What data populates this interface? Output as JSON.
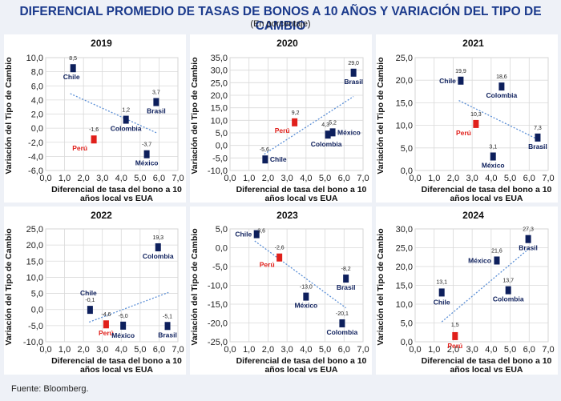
{
  "title": "DIFERENCIAL PROMEDIO DE TASAS DE BONOS A 10 AÑOS Y VARIACIÓN DEL TIPO DE CAMBIO",
  "subtitle": "(En porcentaje)",
  "source": "Fuente: Bloomberg.",
  "colors": {
    "country": "#0d1f5c",
    "peru": "#e0201b",
    "trend": "#5b8fd6",
    "grid": "#d9d9d9"
  },
  "chart_data": [
    {
      "type": "scatter",
      "title": "2019",
      "xlabel": "Diferencial de tasa del bono a 10 años local vs EUA",
      "ylabel": "Variación del Tipo de Cambio",
      "xlim": [
        0,
        7
      ],
      "ylim": [
        -6,
        10
      ],
      "xticks": [
        "0,0",
        "1,0",
        "2,0",
        "3,0",
        "4,0",
        "5,0",
        "6,0",
        "7,0"
      ],
      "yticks": [
        "-6,0",
        "-4,0",
        "-2,0",
        "0,0",
        "2,0",
        "4,0",
        "6,0",
        "8,0",
        "10,0"
      ],
      "points": [
        {
          "name": "Chile",
          "x": 1.45,
          "y": 8.5,
          "label": "8,5"
        },
        {
          "name": "Perú",
          "x": 2.55,
          "y": -1.6,
          "label": "-1,6"
        },
        {
          "name": "Colombia",
          "x": 4.25,
          "y": 1.2,
          "label": "1,2"
        },
        {
          "name": "México",
          "x": 5.35,
          "y": -3.7,
          "label": "-3,7"
        },
        {
          "name": "Brasil",
          "x": 5.85,
          "y": 3.7,
          "label": "3,7"
        }
      ],
      "trend": [
        [
          1.3,
          4.9
        ],
        [
          5.9,
          -0.7
        ]
      ]
    },
    {
      "type": "scatter",
      "title": "2020",
      "xlabel": "Diferencial de tasa del bono a 10 años local vs EUA",
      "ylabel": "Variación del Tipo de Cambio",
      "xlim": [
        0,
        7
      ],
      "ylim": [
        -10,
        35
      ],
      "xticks": [
        "0,0",
        "1,0",
        "2,0",
        "3,0",
        "4,0",
        "5,0",
        "6,0",
        "7,0"
      ],
      "yticks": [
        "-10,0",
        "-5,0",
        "0,0",
        "5,0",
        "10,0",
        "15,0",
        "20,0",
        "25,0",
        "30,0",
        "35,0"
      ],
      "points": [
        {
          "name": "Chile",
          "x": 1.85,
          "y": -5.6,
          "label": "-5,6"
        },
        {
          "name": "Perú",
          "x": 3.4,
          "y": 9.2,
          "label": "9,2"
        },
        {
          "name": "Colombia",
          "x": 5.15,
          "y": 4.3,
          "label": "4,3"
        },
        {
          "name": "México",
          "x": 5.4,
          "y": 5.2,
          "label": "5,2"
        },
        {
          "name": "Brasil",
          "x": 6.5,
          "y": 29.0,
          "label": "29,0"
        }
      ],
      "trend": [
        [
          1.8,
          -3.5
        ],
        [
          6.5,
          19.5
        ]
      ]
    },
    {
      "type": "scatter",
      "title": "2021",
      "xlabel": "Diferencial de tasa del bono a 10 años local vs EUA",
      "ylabel": "Variación del Tipo de Cambio",
      "xlim": [
        0,
        7
      ],
      "ylim": [
        0,
        25
      ],
      "xticks": [
        "0,0",
        "1,0",
        "2,0",
        "3,0",
        "4,0",
        "5,0",
        "6,0",
        "7,0"
      ],
      "yticks": [
        "0,0",
        "5,0",
        "10,0",
        "15,0",
        "20,0",
        "25,0"
      ],
      "points": [
        {
          "name": "Chile",
          "x": 2.4,
          "y": 19.9,
          "label": "19,9"
        },
        {
          "name": "Perú",
          "x": 3.2,
          "y": 10.3,
          "label": "10,3"
        },
        {
          "name": "México",
          "x": 4.1,
          "y": 3.1,
          "label": "3,1"
        },
        {
          "name": "Colombia",
          "x": 4.55,
          "y": 18.6,
          "label": "18,6"
        },
        {
          "name": "Brasil",
          "x": 6.45,
          "y": 7.3,
          "label": "7,3"
        }
      ],
      "trend": [
        [
          2.3,
          15.5
        ],
        [
          6.5,
          6.8
        ]
      ]
    },
    {
      "type": "scatter",
      "title": "2022",
      "xlabel": "Diferencial de tasa del bono a 10 años local vs EUA",
      "ylabel": "Variación del Tipo de Cambio",
      "xlim": [
        0,
        7
      ],
      "ylim": [
        -10,
        25
      ],
      "xticks": [
        "0,0",
        "1,0",
        "2,0",
        "3,0",
        "4,0",
        "5,0",
        "6,0",
        "7,0"
      ],
      "yticks": [
        "-10,0",
        "-5,0",
        "0,0",
        "5,0",
        "10,0",
        "15,0",
        "20,0",
        "25,0"
      ],
      "points": [
        {
          "name": "Chile",
          "x": 2.35,
          "y": -0.1,
          "label": "-0,1"
        },
        {
          "name": "Perú",
          "x": 3.2,
          "y": -4.6,
          "label": "-4,6"
        },
        {
          "name": "México",
          "x": 4.1,
          "y": -5.0,
          "label": "-5,0"
        },
        {
          "name": "Colombia",
          "x": 5.95,
          "y": 19.3,
          "label": "19,3"
        },
        {
          "name": "Brasil",
          "x": 6.45,
          "y": -5.1,
          "label": "-5,1"
        }
      ],
      "trend": [
        [
          2.3,
          -3.9
        ],
        [
          6.5,
          5.3
        ]
      ]
    },
    {
      "type": "scatter",
      "title": "2023",
      "xlabel": "Diferencial de tasa del bono a 10 años local vs EUA",
      "ylabel": "Variación del Tipo de Cambio",
      "xlim": [
        0,
        7
      ],
      "ylim": [
        -25,
        5
      ],
      "xticks": [
        "0,0",
        "1,0",
        "2,0",
        "3,0",
        "4,0",
        "5,0",
        "6,0",
        "7,0"
      ],
      "yticks": [
        "-25,0",
        "-20,0",
        "-15,0",
        "-10,0",
        "-5,0",
        "0,0",
        "5,0"
      ],
      "points": [
        {
          "name": "Chile",
          "x": 1.4,
          "y": 3.6,
          "label": "3,6"
        },
        {
          "name": "Perú",
          "x": 2.6,
          "y": -2.6,
          "label": "-2,6"
        },
        {
          "name": "México",
          "x": 4.0,
          "y": -13.0,
          "label": "-13,0"
        },
        {
          "name": "Brasil",
          "x": 6.1,
          "y": -8.2,
          "label": "-8,2"
        },
        {
          "name": "Colombia",
          "x": 5.9,
          "y": -20.1,
          "label": "-20,1"
        }
      ],
      "trend": [
        [
          1.3,
          1.8
        ],
        [
          6.1,
          -16.0
        ]
      ]
    },
    {
      "type": "scatter",
      "title": "2024",
      "xlabel": "Diferencial de tasa del bono a 10 años local vs EUA",
      "ylabel": "Variación del Tipo de Cambio",
      "xlim": [
        0,
        7
      ],
      "ylim": [
        0,
        30
      ],
      "xticks": [
        "0,0",
        "1,0",
        "2,0",
        "3,0",
        "4,0",
        "5,0",
        "6,0",
        "7,0"
      ],
      "yticks": [
        "0,0",
        "5,0",
        "10,0",
        "15,0",
        "20,0",
        "25,0",
        "30,0"
      ],
      "points": [
        {
          "name": "Chile",
          "x": 1.4,
          "y": 13.1,
          "label": "13,1"
        },
        {
          "name": "Perú",
          "x": 2.1,
          "y": 1.5,
          "label": "1,5"
        },
        {
          "name": "México",
          "x": 4.3,
          "y": 21.6,
          "label": "21,6"
        },
        {
          "name": "Colombia",
          "x": 4.9,
          "y": 13.7,
          "label": "13,7"
        },
        {
          "name": "Brasil",
          "x": 5.95,
          "y": 27.3,
          "label": "27,3"
        }
      ],
      "trend": [
        [
          1.4,
          5.3
        ],
        [
          6.0,
          24.8
        ]
      ]
    }
  ]
}
